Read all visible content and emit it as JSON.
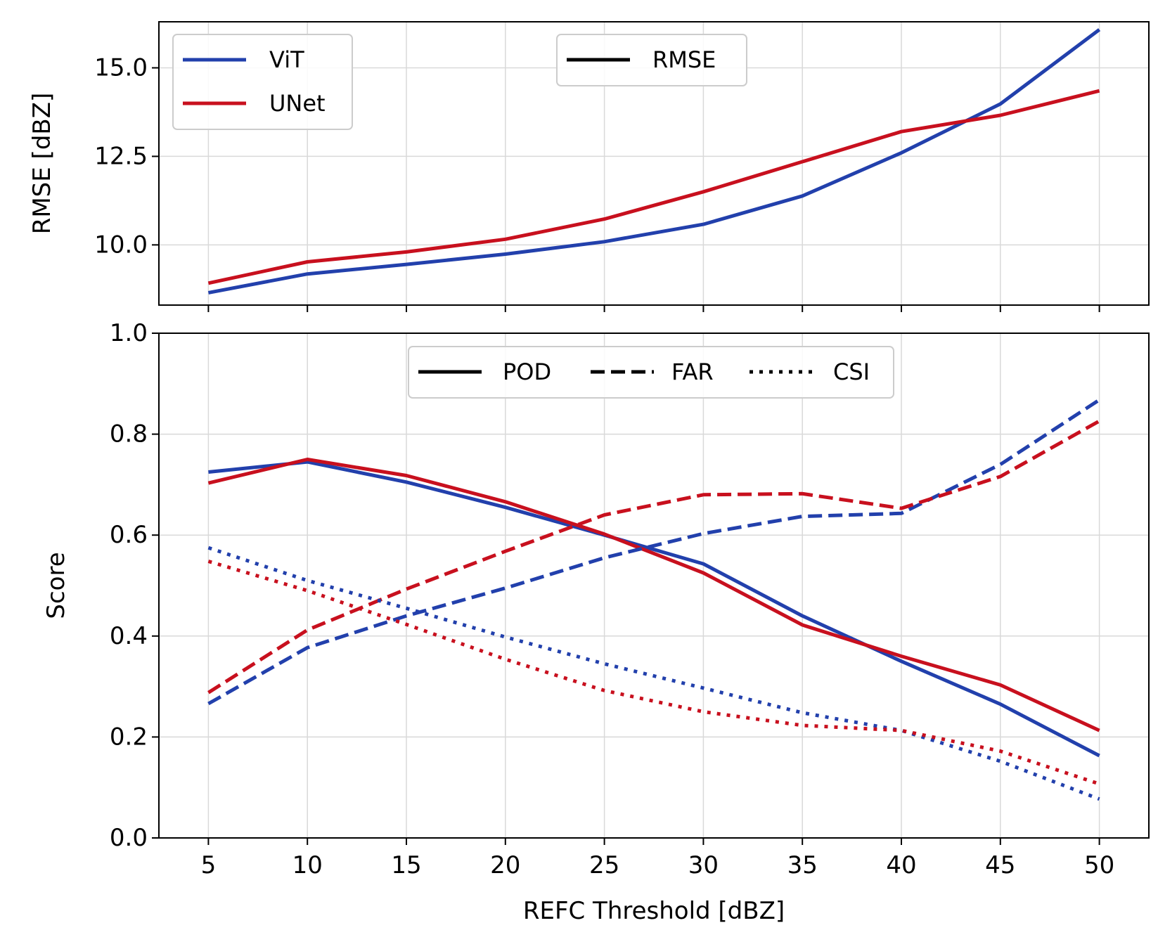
{
  "colors": {
    "vit": "#2240ac",
    "unet": "#c8101e",
    "key": "#000000"
  },
  "chart_data": [
    {
      "type": "line",
      "title": "",
      "xlabel": "",
      "ylabel": "RMSE [dBZ]",
      "x": [
        5,
        10,
        15,
        20,
        25,
        30,
        35,
        40,
        45,
        50
      ],
      "xlim": [
        2.5,
        52.5
      ],
      "ylim": [
        8.3,
        16.3
      ],
      "yticks": [
        10.0,
        12.5,
        15.0
      ],
      "ytick_labels": [
        "10.0",
        "12.5",
        "15.0"
      ],
      "grid": true,
      "series": [
        {
          "name": "ViT",
          "color_key": "vit",
          "style": "solid",
          "values": [
            8.65,
            9.18,
            9.45,
            9.74,
            10.09,
            10.58,
            11.38,
            12.6,
            13.98,
            16.08
          ]
        },
        {
          "name": "UNet",
          "color_key": "unet",
          "style": "solid",
          "values": [
            8.92,
            9.52,
            9.8,
            10.16,
            10.73,
            11.5,
            12.35,
            13.2,
            13.66,
            14.35
          ]
        }
      ],
      "legend_models": {
        "position": "upper-left",
        "entries": [
          "ViT",
          "UNet"
        ]
      },
      "legend_metric": {
        "position": "upper-center",
        "entries": [
          "RMSE"
        ]
      }
    },
    {
      "type": "line",
      "title": "",
      "xlabel": "REFC Threshold [dBZ]",
      "ylabel": "Score",
      "x": [
        5,
        10,
        15,
        20,
        25,
        30,
        35,
        40,
        45,
        50
      ],
      "xticks": [
        5,
        10,
        15,
        20,
        25,
        30,
        35,
        40,
        45,
        50
      ],
      "xtick_labels": [
        "5",
        "10",
        "15",
        "20",
        "25",
        "30",
        "35",
        "40",
        "45",
        "50"
      ],
      "xlim": [
        2.5,
        52.5
      ],
      "ylim": [
        0.0,
        1.0
      ],
      "yticks": [
        0.0,
        0.2,
        0.4,
        0.6,
        0.8,
        1.0
      ],
      "ytick_labels": [
        "0.0",
        "0.2",
        "0.4",
        "0.6",
        "0.8",
        "1.0"
      ],
      "grid": true,
      "series": [
        {
          "name": "ViT POD",
          "color_key": "vit",
          "style": "solid",
          "values": [
            0.725,
            0.745,
            0.705,
            0.655,
            0.6,
            0.543,
            0.44,
            0.35,
            0.265,
            0.163
          ]
        },
        {
          "name": "UNet POD",
          "color_key": "unet",
          "style": "solid",
          "values": [
            0.703,
            0.75,
            0.718,
            0.666,
            0.602,
            0.525,
            0.422,
            0.36,
            0.303,
            0.213
          ]
        },
        {
          "name": "ViT FAR",
          "color_key": "vit",
          "style": "dashed",
          "values": [
            0.266,
            0.377,
            0.44,
            0.495,
            0.555,
            0.603,
            0.637,
            0.643,
            0.74,
            0.868
          ]
        },
        {
          "name": "UNet FAR",
          "color_key": "unet",
          "style": "dashed",
          "values": [
            0.288,
            0.412,
            0.493,
            0.568,
            0.64,
            0.68,
            0.682,
            0.653,
            0.716,
            0.826
          ]
        },
        {
          "name": "ViT CSI",
          "color_key": "vit",
          "style": "dotted",
          "values": [
            0.575,
            0.51,
            0.455,
            0.398,
            0.345,
            0.297,
            0.248,
            0.213,
            0.152,
            0.077
          ]
        },
        {
          "name": "UNet CSI",
          "color_key": "unet",
          "style": "dotted",
          "values": [
            0.548,
            0.49,
            0.423,
            0.354,
            0.292,
            0.25,
            0.223,
            0.213,
            0.172,
            0.107
          ]
        }
      ],
      "legend_metric": {
        "position": "upper-center",
        "entries": [
          "POD",
          "FAR",
          "CSI"
        ]
      }
    }
  ]
}
